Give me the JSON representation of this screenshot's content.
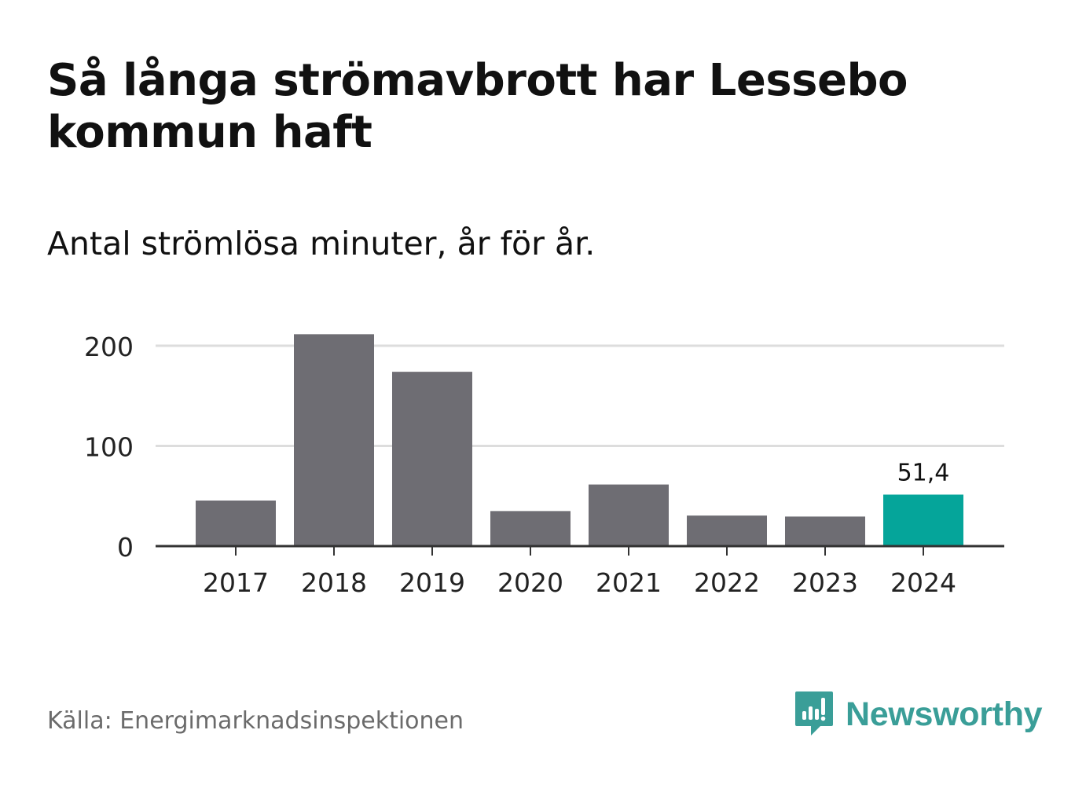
{
  "title": "Så långa strömavbrott har Lessebo kommun haft",
  "subtitle": "Antal strömlösa minuter, år för år.",
  "source": "Källa: Energimarknadsinspektionen",
  "brand": {
    "name": "Newsworthy",
    "icon": "newsworthy-logo-icon",
    "color": "#3a9e98"
  },
  "colors": {
    "bar": "#6e6d73",
    "highlight": "#05a59a",
    "grid": "#dddddd",
    "axis": "#333333"
  },
  "chart_data": {
    "type": "bar",
    "title": "Så långa strömavbrott har Lessebo kommun haft",
    "subtitle": "Antal strömlösa minuter, år för år.",
    "categories": [
      "2017",
      "2018",
      "2019",
      "2020",
      "2021",
      "2022",
      "2023",
      "2024"
    ],
    "values": [
      45.5,
      211.5,
      174.0,
      35.0,
      61.5,
      30.5,
      29.5,
      51.4
    ],
    "highlight_index": 7,
    "data_labels": [
      {
        "index": 7,
        "text": "51,4"
      }
    ],
    "yticks": [
      0,
      100,
      200
    ],
    "ylim": [
      0,
      215
    ],
    "xlabel": "",
    "ylabel": "",
    "grid": true
  }
}
